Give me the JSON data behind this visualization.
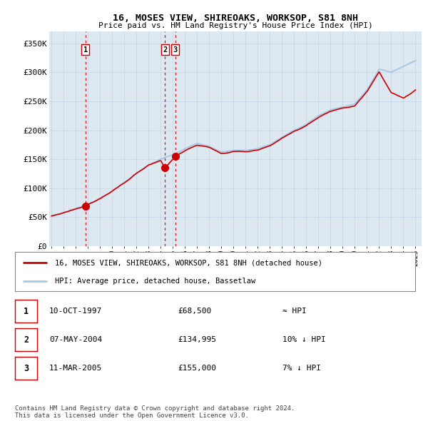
{
  "title": "16, MOSES VIEW, SHIREOAKS, WORKSOP, S81 8NH",
  "subtitle": "Price paid vs. HM Land Registry's House Price Index (HPI)",
  "ylabel_ticks": [
    "£0",
    "£50K",
    "£100K",
    "£150K",
    "£200K",
    "£250K",
    "£300K",
    "£350K"
  ],
  "ytick_values": [
    0,
    50000,
    100000,
    150000,
    200000,
    250000,
    300000,
    350000
  ],
  "ylim": [
    0,
    370000
  ],
  "xlim_start": 1994.8,
  "xlim_end": 2025.5,
  "sale_dates": [
    1997.78,
    2004.35,
    2005.19
  ],
  "sale_prices": [
    68500,
    134995,
    155000
  ],
  "sale_labels": [
    "1",
    "2",
    "3"
  ],
  "vline_color": "#cc0000",
  "sale_dot_color": "#cc0000",
  "hpi_line_color": "#a8c8e8",
  "price_line_color": "#cc0000",
  "grid_color": "#c8d8e8",
  "bg_color": "#dde8f0",
  "legend_line1": "16, MOSES VIEW, SHIREOAKS, WORKSOP, S81 8NH (detached house)",
  "legend_line2": "HPI: Average price, detached house, Bassetlaw",
  "table_rows": [
    [
      "1",
      "10-OCT-1997",
      "£68,500",
      "≈ HPI"
    ],
    [
      "2",
      "07-MAY-2004",
      "£134,995",
      "10% ↓ HPI"
    ],
    [
      "3",
      "11-MAR-2005",
      "£155,000",
      "7% ↓ HPI"
    ]
  ],
  "footer": "Contains HM Land Registry data © Crown copyright and database right 2024.\nThis data is licensed under the Open Government Licence v3.0.",
  "hpi_anchors_x": [
    1995,
    1996,
    1997,
    1998,
    1999,
    2000,
    2001,
    2002,
    2003,
    2004,
    2005,
    2006,
    2007,
    2008,
    2009,
    2010,
    2011,
    2012,
    2013,
    2014,
    2015,
    2016,
    2017,
    2018,
    2019,
    2020,
    2021,
    2022,
    2023,
    2024,
    2025
  ],
  "hpi_anchors_y": [
    52000,
    58000,
    65000,
    72000,
    82000,
    95000,
    110000,
    125000,
    140000,
    150000,
    158000,
    168000,
    178000,
    172000,
    162000,
    165000,
    165000,
    168000,
    175000,
    188000,
    200000,
    210000,
    225000,
    235000,
    240000,
    245000,
    270000,
    305000,
    300000,
    310000,
    320000
  ],
  "price_anchors_x": [
    1995,
    1996,
    1997,
    1997.78,
    1998,
    1999,
    2000,
    2001,
    2002,
    2003,
    2004,
    2004.35,
    2005,
    2005.19,
    2006,
    2007,
    2008,
    2009,
    2010,
    2011,
    2012,
    2013,
    2014,
    2015,
    2016,
    2017,
    2018,
    2019,
    2020,
    2021,
    2022,
    2023,
    2024,
    2025
  ],
  "price_anchors_y": [
    52000,
    58000,
    64000,
    68500,
    72000,
    82000,
    95000,
    110000,
    125000,
    140000,
    148000,
    134995,
    150000,
    155000,
    165000,
    175000,
    170000,
    160000,
    163000,
    163000,
    166000,
    173000,
    186000,
    198000,
    208000,
    222000,
    233000,
    238000,
    242000,
    267000,
    300000,
    265000,
    255000,
    270000
  ]
}
